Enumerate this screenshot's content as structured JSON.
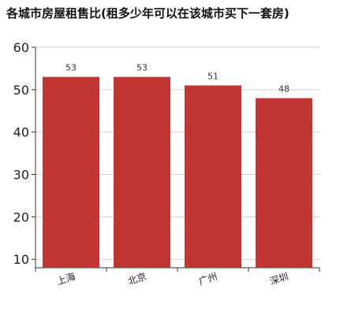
{
  "chart_data": {
    "type": "bar",
    "title": "各城市房屋租售比(租多少年可以在该城市买下一套房)",
    "categories": [
      "上海",
      "北京",
      "广州",
      "深圳"
    ],
    "values": [
      53,
      53,
      51,
      48
    ],
    "data_labels": [
      "53",
      "53",
      "51",
      "48"
    ],
    "xlabel": "",
    "ylabel": "",
    "ylim": [
      8,
      60
    ],
    "yticks": [
      10,
      20,
      30,
      40,
      50,
      60
    ],
    "grid": true,
    "bar_color": "#c23531",
    "legend": "none"
  }
}
